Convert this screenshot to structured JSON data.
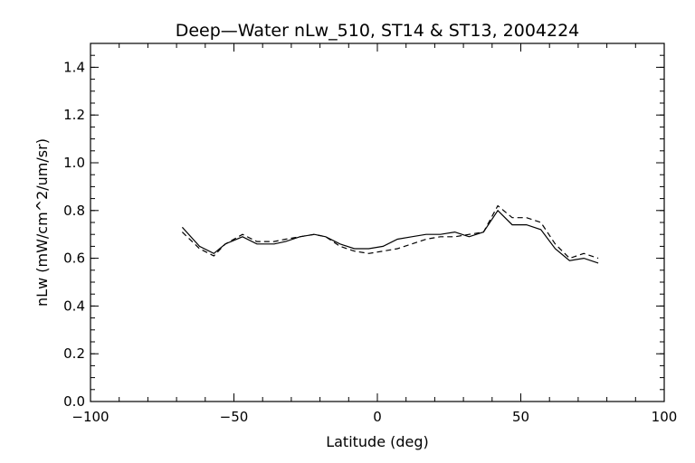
{
  "chart_data": {
    "type": "line",
    "title": "Deep—Water nLw_510, ST14 & ST13, 2004224",
    "xlabel": "Latitude (deg)",
    "ylabel": "nLw (mW/cm^2/um/sr)",
    "xlim": [
      -100,
      100
    ],
    "ylim": [
      0.0,
      1.5
    ],
    "xticks": [
      -100,
      -50,
      0,
      50,
      100
    ],
    "xtick_labels": [
      "−100",
      "−50",
      "0",
      "50",
      "100"
    ],
    "yticks": [
      0.0,
      0.2,
      0.4,
      0.6,
      0.8,
      1.0,
      1.2,
      1.4
    ],
    "ytick_labels": [
      "0.0",
      "0.2",
      "0.4",
      "0.6",
      "0.8",
      "1.0",
      "1.2",
      "1.4"
    ],
    "grid": false,
    "series": [
      {
        "style": "solid",
        "x": [
          -68,
          -62,
          -57,
          -53,
          -47,
          -42,
          -36,
          -32,
          -27,
          -22,
          -18,
          -13,
          -8,
          -3,
          2,
          7,
          12,
          17,
          22,
          27,
          32,
          37,
          42,
          47,
          52,
          57,
          62,
          67,
          72,
          77
        ],
        "y": [
          0.73,
          0.65,
          0.62,
          0.66,
          0.69,
          0.66,
          0.66,
          0.67,
          0.69,
          0.7,
          0.69,
          0.66,
          0.64,
          0.64,
          0.65,
          0.68,
          0.69,
          0.7,
          0.7,
          0.71,
          0.69,
          0.71,
          0.8,
          0.74,
          0.74,
          0.72,
          0.64,
          0.59,
          0.6,
          0.58
        ]
      },
      {
        "style": "dashed",
        "x": [
          -68,
          -62,
          -57,
          -53,
          -47,
          -42,
          -36,
          -32,
          -27,
          -22,
          -18,
          -13,
          -8,
          -3,
          2,
          7,
          12,
          17,
          22,
          27,
          32,
          37,
          42,
          47,
          52,
          57,
          62,
          67,
          72,
          77
        ],
        "y": [
          0.71,
          0.64,
          0.61,
          0.66,
          0.7,
          0.67,
          0.67,
          0.68,
          0.69,
          0.7,
          0.69,
          0.65,
          0.63,
          0.62,
          0.63,
          0.64,
          0.66,
          0.68,
          0.69,
          0.69,
          0.7,
          0.71,
          0.82,
          0.77,
          0.77,
          0.75,
          0.66,
          0.6,
          0.62,
          0.6
        ]
      }
    ]
  }
}
